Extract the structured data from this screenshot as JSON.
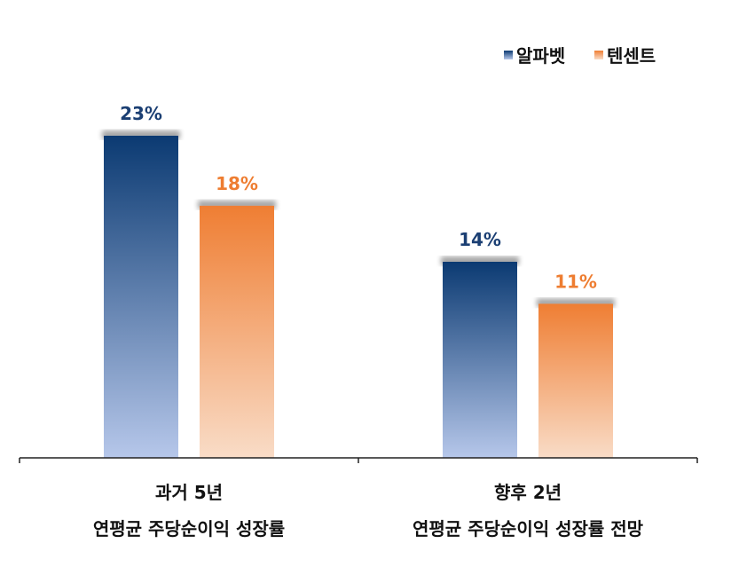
{
  "chart_data": {
    "type": "bar",
    "categories": [
      [
        "과거 5년",
        "연평균 주당순이익 성장률"
      ],
      [
        "향후 2년",
        "연평균 주당순이익 성장률 전망"
      ]
    ],
    "series": [
      {
        "name": "알파벳",
        "values": [
          23,
          14
        ],
        "labels": [
          "23%",
          "14%"
        ],
        "color_top": "#0b3a72",
        "color_bottom": "#b6c7ea",
        "label_color": "#1b3f73"
      },
      {
        "name": "텐센트",
        "values": [
          18,
          11
        ],
        "labels": [
          "18%",
          "11%"
        ],
        "color_top": "#ef7e33",
        "color_bottom": "#f9dcc7",
        "label_color": "#ee7d31"
      }
    ],
    "ylim": [
      0,
      24.2
    ],
    "legend_position": "top-right",
    "grid": false
  }
}
